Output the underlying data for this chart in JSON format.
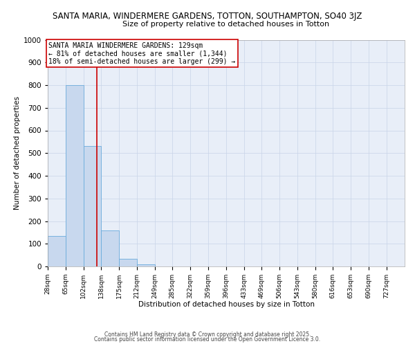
{
  "title_line1": "SANTA MARIA, WINDERMERE GARDENS, TOTTON, SOUTHAMPTON, SO40 3JZ",
  "title_line2": "Size of property relative to detached houses in Totton",
  "xlabel": "Distribution of detached houses by size in Totton",
  "ylabel": "Number of detached properties",
  "bin_edges": [
    28,
    65,
    102,
    138,
    175,
    212,
    249,
    285,
    322,
    359,
    396,
    433,
    469,
    506,
    543,
    580,
    616,
    653,
    690,
    727,
    764
  ],
  "bar_heights": [
    135,
    800,
    530,
    160,
    35,
    10,
    0,
    0,
    0,
    0,
    0,
    0,
    0,
    0,
    0,
    0,
    0,
    0,
    0,
    0
  ],
  "bar_color": "#c8d8ee",
  "bar_edge_color": "#6aabdc",
  "property_size": 129,
  "vline_color": "#cc0000",
  "annotation_text": "SANTA MARIA WINDERMERE GARDENS: 129sqm\n← 81% of detached houses are smaller (1,344)\n18% of semi-detached houses are larger (299) →",
  "annotation_box_color": "#cc0000",
  "annotation_bg": "#ffffff",
  "ylim": [
    0,
    1000
  ],
  "yticks": [
    0,
    100,
    200,
    300,
    400,
    500,
    600,
    700,
    800,
    900,
    1000
  ],
  "grid_color": "#c8d4e8",
  "bg_color": "#e8eef8",
  "footer_line1": "Contains HM Land Registry data © Crown copyright and database right 2025.",
  "footer_line2": "Contains public sector information licensed under the Open Government Licence 3.0.",
  "title_fontsize": 8.5,
  "subtitle_fontsize": 8,
  "tick_label_fontsize": 6.5,
  "annotation_fontsize": 7,
  "ylabel_fontsize": 7.5,
  "xlabel_fontsize": 7.5
}
